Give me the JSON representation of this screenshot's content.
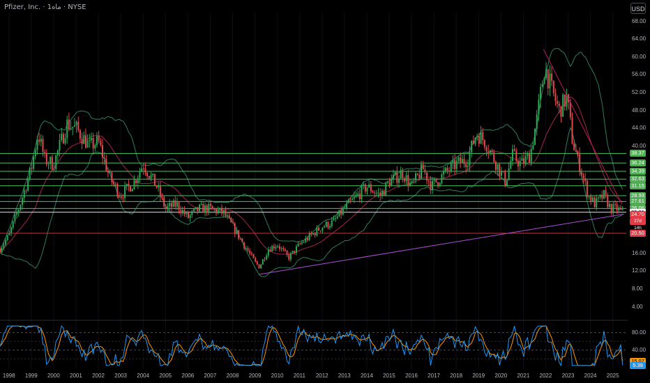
{
  "header": {
    "title": "Pfizer, Inc. · 1ماه · NYSE",
    "currency_button": "USD"
  },
  "colors": {
    "background": "#000000",
    "up": "#2ca854",
    "down": "#e0494d",
    "support_line": "#48c765",
    "bollinger": "#2e7d5a",
    "moving_average": "#a3254a",
    "trendline": "#b04ed6",
    "rsi": "#2196f3",
    "rsi_signal": "#ff9800"
  },
  "price_axis": {
    "ticks": [
      "68.00",
      "64.00",
      "60.00",
      "56.00",
      "52.00",
      "48.00",
      "44.00",
      "40.00",
      "36.00",
      "32.00",
      "28.00",
      "24.00",
      "20.00",
      "16.00",
      "12.00",
      "8.00",
      "4.00"
    ]
  },
  "rsi_axis": {
    "ticks": [
      "80.00",
      "40.00"
    ]
  },
  "time_axis": {
    "labels": [
      "1998",
      "1999",
      "2000",
      "2001",
      "2002",
      "2003",
      "2004",
      "2005",
      "2006",
      "2007",
      "2008",
      "2009",
      "2010",
      "2011",
      "2012",
      "2013",
      "2014",
      "2015",
      "2016",
      "2017",
      "2018",
      "2019",
      "2020",
      "2021",
      "2022",
      "2023",
      "2024",
      "2025"
    ]
  },
  "price_badges": [
    {
      "text": "38.37",
      "kind": "green"
    },
    {
      "text": "36.24",
      "kind": "green"
    },
    {
      "text": "34.39",
      "kind": "green"
    },
    {
      "text": "32.63",
      "kind": "green"
    },
    {
      "text": "31.15",
      "kind": "green"
    },
    {
      "text": "28.93",
      "kind": "green"
    },
    {
      "text": "27.61",
      "kind": "green"
    },
    {
      "text": "26.06",
      "kind": "green"
    },
    {
      "text": "25.21",
      "kind": "white"
    },
    {
      "text": "24.70",
      "kind": "red"
    },
    {
      "text": "27d 14h",
      "kind": "red-sub"
    },
    {
      "text": "20.50",
      "kind": "red"
    }
  ],
  "rsi_badges": [
    {
      "text": "15.07",
      "kind": "orange"
    },
    {
      "text": "5.39",
      "kind": "blue"
    }
  ],
  "chart_data": {
    "type": "candlestick",
    "symbol": "Pfizer, Inc.",
    "exchange": "NYSE",
    "interval": "1 month",
    "currency": "USD",
    "ylim": [
      2,
      70
    ],
    "x_range": [
      1997.6,
      2025.6
    ],
    "last_price": 24.7,
    "horizontal_levels": {
      "support_resistance": [
        38.37,
        36.24,
        34.39,
        32.63,
        31.15,
        28.93,
        27.61,
        26.06
      ],
      "white": [
        25.21
      ],
      "red": [
        20.5
      ]
    },
    "trendlines": [
      {
        "name": "long-term support",
        "from": [
          2009.2,
          11.3
        ],
        "to": [
          2025.5,
          24.8
        ]
      },
      {
        "name": "downtrend",
        "from": [
          2021.9,
          61.7
        ],
        "to": [
          2025.4,
          27.0
        ]
      }
    ],
    "price_keypoints": [
      [
        1997.6,
        17
      ],
      [
        1998.0,
        20
      ],
      [
        1998.5,
        27
      ],
      [
        1999.0,
        35
      ],
      [
        1999.3,
        43
      ],
      [
        1999.6,
        37
      ],
      [
        2000.0,
        36
      ],
      [
        2000.6,
        45
      ],
      [
        2001.0,
        44
      ],
      [
        2001.6,
        40
      ],
      [
        2002.0,
        41
      ],
      [
        2002.5,
        33
      ],
      [
        2003.0,
        29
      ],
      [
        2003.6,
        32
      ],
      [
        2004.0,
        36
      ],
      [
        2004.6,
        31
      ],
      [
        2005.0,
        26
      ],
      [
        2005.5,
        27
      ],
      [
        2006.0,
        24
      ],
      [
        2006.5,
        26
      ],
      [
        2007.0,
        26
      ],
      [
        2007.6,
        25
      ],
      [
        2008.0,
        22
      ],
      [
        2008.5,
        18
      ],
      [
        2009.0,
        14
      ],
      [
        2009.2,
        13
      ],
      [
        2009.6,
        17
      ],
      [
        2010.0,
        18
      ],
      [
        2010.5,
        15
      ],
      [
        2011.0,
        18
      ],
      [
        2011.5,
        20
      ],
      [
        2012.0,
        22
      ],
      [
        2012.5,
        23
      ],
      [
        2013.0,
        26
      ],
      [
        2013.6,
        29
      ],
      [
        2014.0,
        31
      ],
      [
        2014.6,
        29
      ],
      [
        2015.0,
        32
      ],
      [
        2015.6,
        34
      ],
      [
        2016.0,
        31
      ],
      [
        2016.5,
        35
      ],
      [
        2016.9,
        31
      ],
      [
        2017.5,
        34
      ],
      [
        2018.0,
        36
      ],
      [
        2018.5,
        37
      ],
      [
        2018.9,
        43
      ],
      [
        2019.3,
        41
      ],
      [
        2019.8,
        36
      ],
      [
        2020.2,
        32
      ],
      [
        2020.5,
        38
      ],
      [
        2020.9,
        36
      ],
      [
        2021.3,
        38
      ],
      [
        2021.6,
        46
      ],
      [
        2021.95,
        58
      ],
      [
        2022.3,
        52
      ],
      [
        2022.6,
        48
      ],
      [
        2022.95,
        51
      ],
      [
        2023.2,
        41
      ],
      [
        2023.5,
        36
      ],
      [
        2023.9,
        29
      ],
      [
        2024.2,
        27
      ],
      [
        2024.6,
        29
      ],
      [
        2024.9,
        26
      ],
      [
        2025.2,
        26
      ],
      [
        2025.5,
        24.7
      ]
    ],
    "rsi": {
      "levels": [
        80,
        40
      ],
      "last_values": {
        "signal": 15.07,
        "rsi": 5.39
      }
    }
  }
}
